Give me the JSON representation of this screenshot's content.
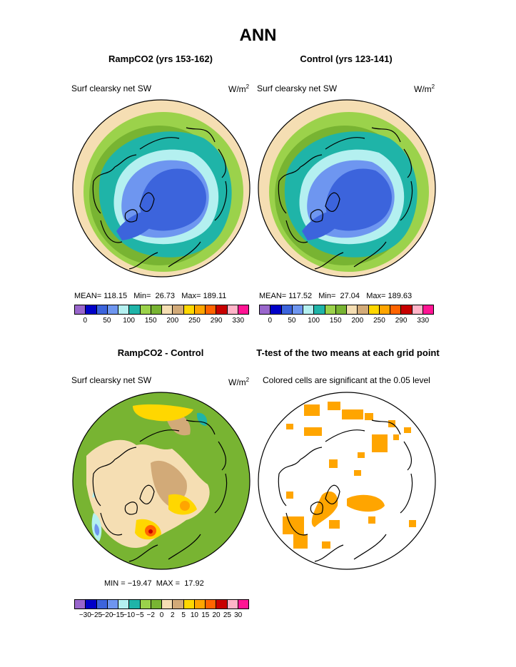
{
  "title": "ANN",
  "panels": [
    {
      "title": "RampCO2 (yrs 153-162)",
      "subtitle": "Surf clearsky net SW",
      "units": "W/m",
      "units_sup": "2",
      "stats": "MEAN= 118.15   Min=  26.73   Max= 189.11"
    },
    {
      "title": "Control (yrs 123-141)",
      "subtitle": "Surf clearsky net SW",
      "units": "W/m",
      "units_sup": "2",
      "stats": "MEAN= 117.52   Min=  27.04   Max= 189.63"
    },
    {
      "title": "RampCO2 - Control",
      "subtitle": "Surf clearsky net SW",
      "units": "W/m",
      "units_sup": "2",
      "stats": "MIN = −19.47  MAX =  17.92"
    },
    {
      "title": "T-test of the two means at each grid point",
      "subtitle": "Colored cells are significant at the 0.05 level"
    }
  ],
  "chart_data": [
    {
      "type": "heatmap",
      "title": "RampCO2 (yrs 153-162)",
      "variable": "Surf clearsky net SW",
      "units": "W/m2",
      "projection": "north polar stereographic",
      "stats": {
        "mean": 118.15,
        "min": 26.73,
        "max": 189.11
      },
      "colorbar_levels": [
        "0",
        "50",
        "100",
        "150",
        "200",
        "250",
        "290",
        "330"
      ],
      "colorbar_colors": [
        "#9966cc",
        "#0000c8",
        "#3c64dc",
        "#6e96f0",
        "#b4f0f0",
        "#1fb4a8",
        "#9bd24b",
        "#78b432",
        "#f5deb3",
        "#d2aa78",
        "#ffd700",
        "#ffa500",
        "#ff6400",
        "#c80000",
        "#ffb4c8",
        "#ff1493"
      ]
    },
    {
      "type": "heatmap",
      "title": "Control (yrs 123-141)",
      "variable": "Surf clearsky net SW",
      "units": "W/m2",
      "projection": "north polar stereographic",
      "stats": {
        "mean": 117.52,
        "min": 27.04,
        "max": 189.63
      },
      "colorbar_levels": [
        "0",
        "50",
        "100",
        "150",
        "200",
        "250",
        "290",
        "330"
      ],
      "colorbar_colors": [
        "#9966cc",
        "#0000c8",
        "#3c64dc",
        "#6e96f0",
        "#b4f0f0",
        "#1fb4a8",
        "#9bd24b",
        "#78b432",
        "#f5deb3",
        "#d2aa78",
        "#ffd700",
        "#ffa500",
        "#ff6400",
        "#c80000",
        "#ffb4c8",
        "#ff1493"
      ]
    },
    {
      "type": "heatmap",
      "title": "RampCO2 - Control",
      "variable": "Surf clearsky net SW",
      "units": "W/m2",
      "projection": "north polar stereographic",
      "stats": {
        "min": -19.47,
        "max": 17.92
      },
      "colorbar_levels": [
        "−30",
        "−25",
        "−20",
        "−15",
        "−10",
        "−5",
        "−2",
        "0",
        "2",
        "5",
        "10",
        "15",
        "20",
        "25",
        "30"
      ],
      "colorbar_colors": [
        "#9966cc",
        "#0000c8",
        "#3c64dc",
        "#6e96f0",
        "#b4f0f0",
        "#1fb4a8",
        "#9bd24b",
        "#78b432",
        "#f5deb3",
        "#d2aa78",
        "#ffd700",
        "#ffa500",
        "#ff6400",
        "#c80000",
        "#ffb4c8",
        "#ff1493"
      ]
    },
    {
      "type": "heatmap",
      "title": "T-test of the two means at each grid point",
      "note": "Colored cells are significant at the 0.05 level",
      "significant_color": "#ffa500",
      "projection": "north polar stereographic"
    }
  ]
}
